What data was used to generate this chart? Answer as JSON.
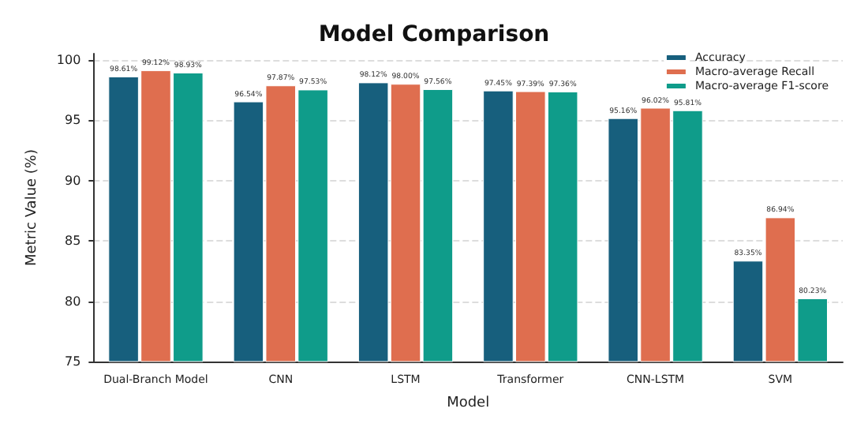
{
  "chart_data": {
    "type": "bar",
    "title": "Model Comparison",
    "xlabel": "Model",
    "ylabel": "Metric Value (%)",
    "categories": [
      "Dual-Branch Model",
      "CNN",
      "LSTM",
      "Transformer",
      "CNN-LSTM",
      "SVM"
    ],
    "series": [
      {
        "name": "Accuracy",
        "color": "#175f7d",
        "values": [
          98.61,
          96.54,
          98.12,
          97.45,
          95.16,
          83.35
        ],
        "value_labels": [
          "98.61%",
          "96.54%",
          "98.12%",
          "97.45%",
          "95.16%",
          "83.35%"
        ]
      },
      {
        "name": "Macro-average Recall",
        "color": "#df6e4f",
        "values": [
          99.12,
          97.87,
          98.0,
          97.39,
          96.02,
          86.94
        ],
        "value_labels": [
          "99.12%",
          "97.87%",
          "98.00%",
          "97.39%",
          "96.02%",
          "86.94%"
        ]
      },
      {
        "name": "Macro-average F1-score",
        "color": "#0f9c8a",
        "values": [
          98.93,
          97.53,
          97.56,
          97.36,
          95.81,
          80.23
        ],
        "value_labels": [
          "98.93%",
          "97.53%",
          "97.56%",
          "97.36%",
          "95.81%",
          "80.23%"
        ]
      }
    ],
    "ylim": [
      75,
      100.5
    ],
    "yticks": [
      75,
      80,
      85,
      90,
      95,
      100
    ],
    "grid": "y",
    "legend": "top right"
  }
}
